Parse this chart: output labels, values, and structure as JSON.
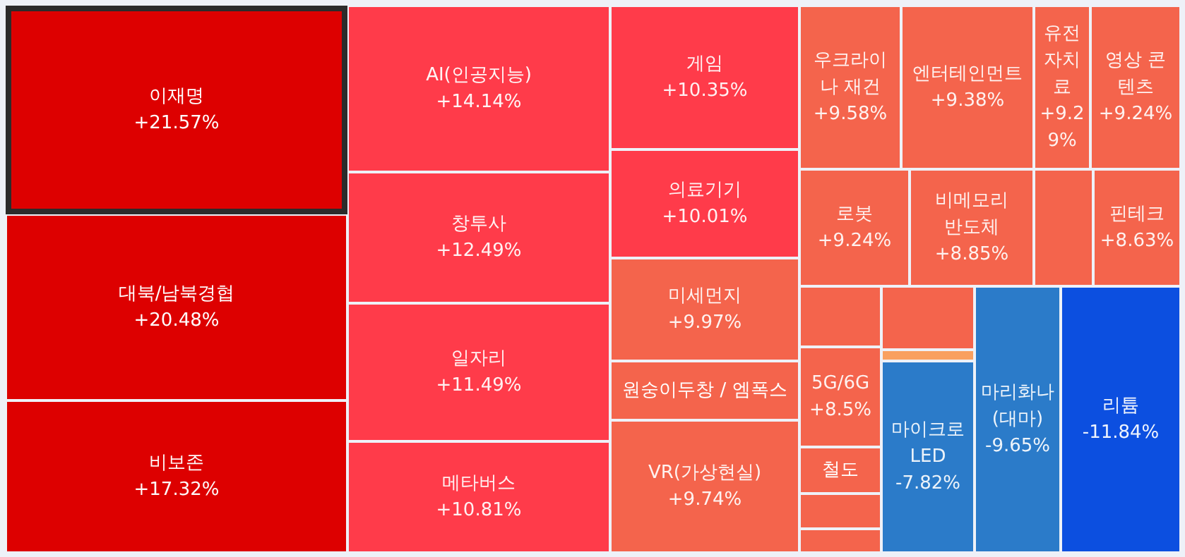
{
  "chart_data": {
    "type": "other",
    "categories": [
      "이재명",
      "대북/남북경협",
      "비보존",
      "AI(인공지능)",
      "창투사",
      "일자리",
      "메타버스",
      "게임",
      "의료기기",
      "미세먼지",
      "원숭이두창 / 엠폭스",
      "VR(가상현실)",
      "우크라이나 재건",
      "엔터테인먼트",
      "유전자치료",
      "영상 콘텐츠",
      "로봇",
      "비메모리 반도체",
      null,
      "핀테크",
      null,
      "5G/6G",
      "철도",
      null,
      null,
      null,
      null,
      "마이크로 LED",
      "마리화나(대마)",
      "리튬"
    ],
    "values": [
      21.57,
      20.48,
      17.32,
      14.14,
      12.49,
      11.49,
      10.81,
      10.35,
      10.01,
      9.97,
      null,
      9.74,
      9.58,
      9.38,
      9.29,
      9.24,
      9.24,
      8.85,
      null,
      8.63,
      null,
      8.5,
      null,
      null,
      null,
      null,
      null,
      -7.82,
      -9.65,
      -11.84
    ],
    "value_labels": [
      "+21.57%",
      "+20.48%",
      "+17.32%",
      "+14.14%",
      "+12.49%",
      "+11.49%",
      "+10.81%",
      "+10.35%",
      "+10.01%",
      "+9.97%",
      null,
      "+9.74%",
      "+9.58%",
      "+9.38%",
      "+9.29%",
      "+9.24%",
      "+9.24%",
      "+8.85%",
      null,
      "+8.63%",
      null,
      "+8.5%",
      null,
      null,
      null,
      null,
      null,
      "-7.82%",
      "-9.65%",
      "-11.84%"
    ],
    "colors": [
      "#dd0000",
      "#dd0000",
      "#dd0000",
      "#ff3b4a",
      "#ff3b4a",
      "#ff3b4a",
      "#ff3b4a",
      "#ff3b4a",
      "#ff3b4a",
      "#f4644c",
      "#f4644c",
      "#f4644c",
      "#f4644c",
      "#f4644c",
      "#f4644c",
      "#f4644c",
      "#f4644c",
      "#f4644c",
      "#f4644c",
      "#f4644c",
      "#f4644c",
      "#f4644c",
      "#f4644c",
      "#f4644c",
      "#f4644c",
      "#f4644c",
      "#f9a060",
      "#2b7bc9",
      "#2b7bc9",
      "#0c4fe0"
    ]
  }
}
